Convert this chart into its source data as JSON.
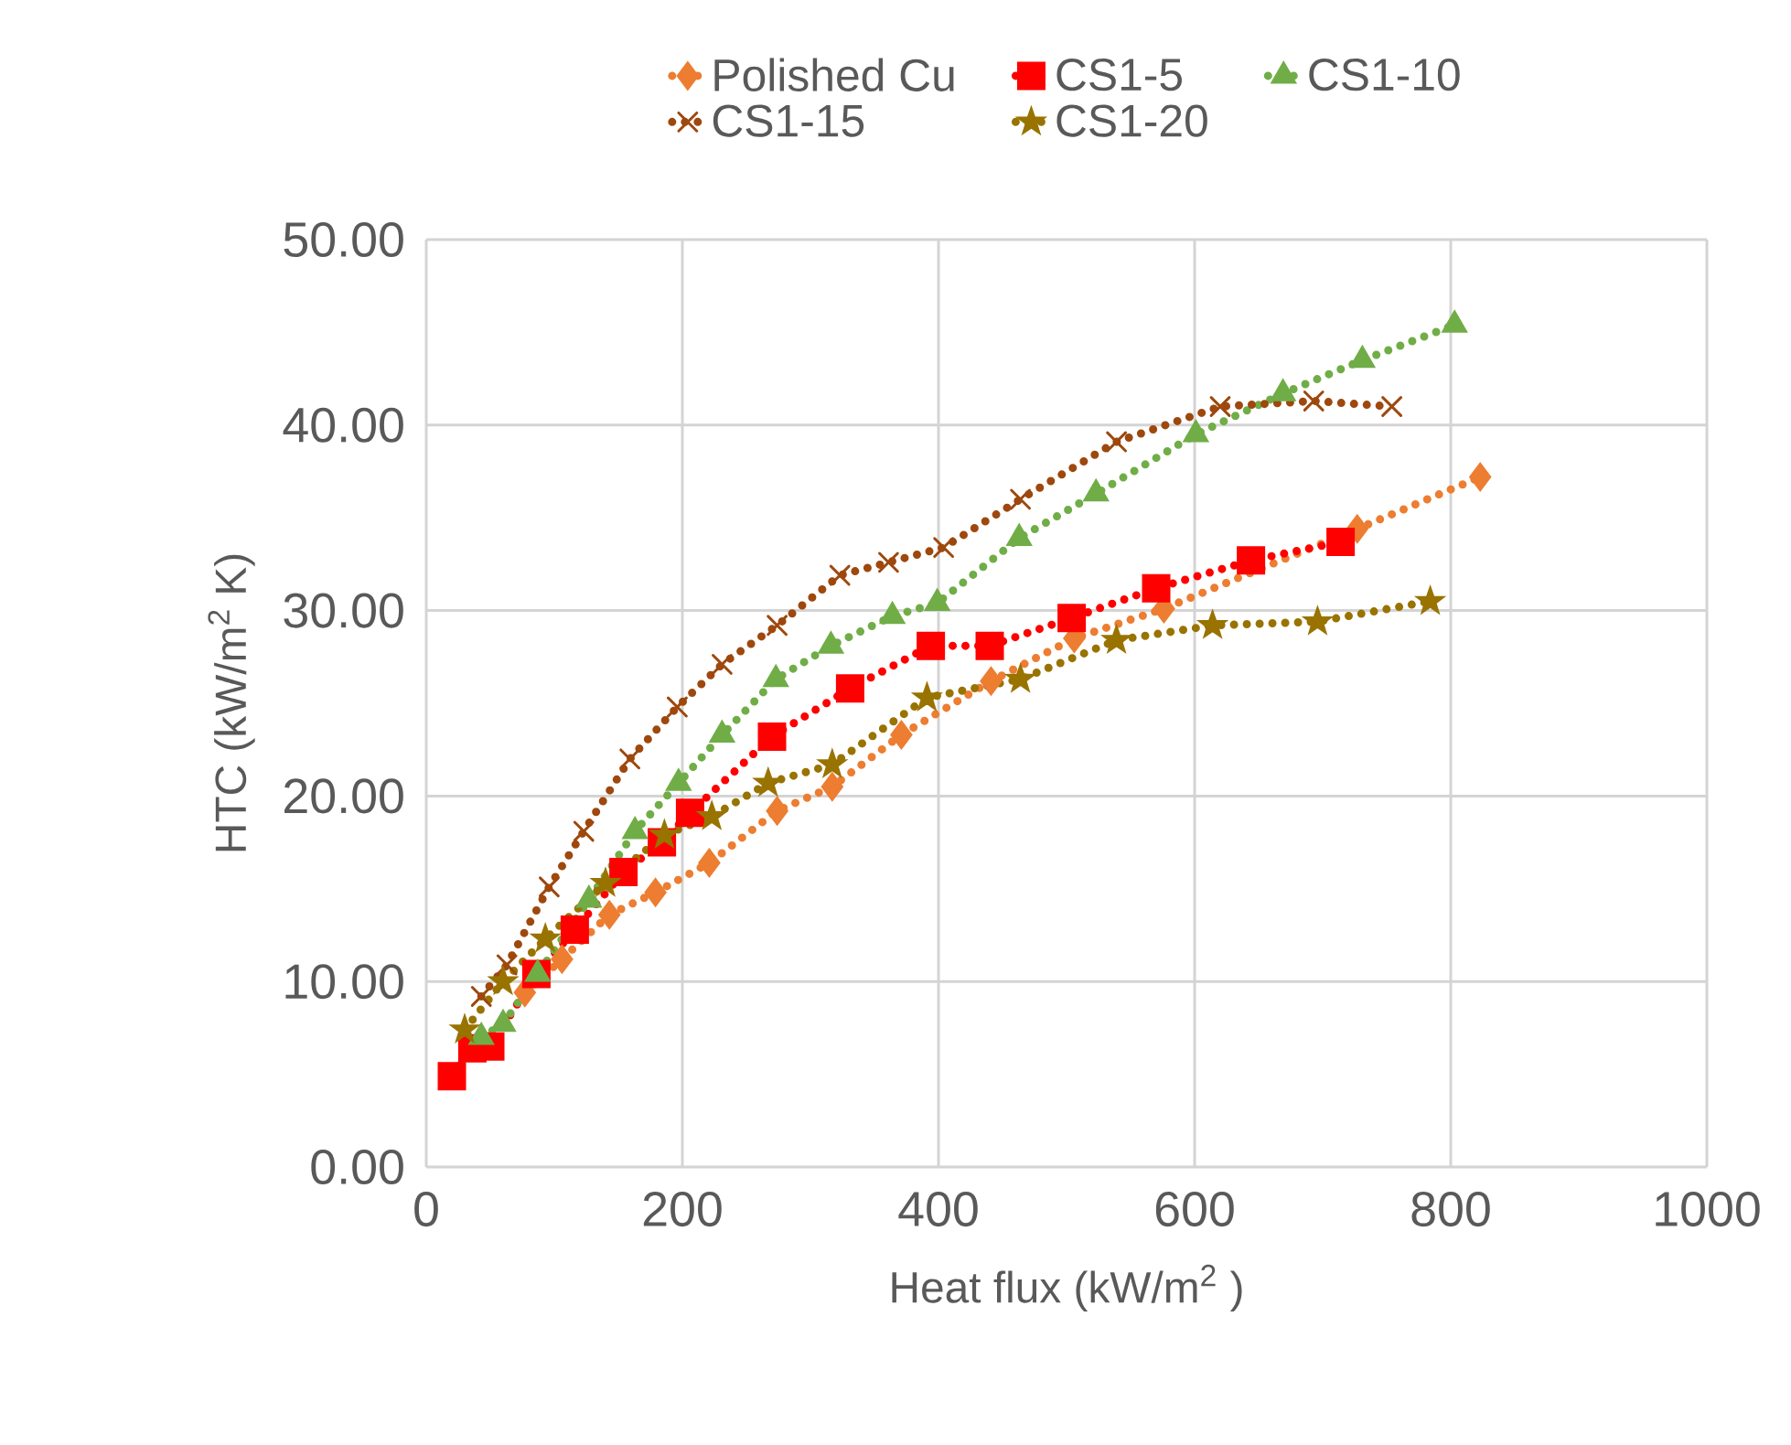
{
  "chart_data": {
    "type": "line",
    "xlabel": "Heat flux  (kW/m$^{2}$ )",
    "ylabel": "HTC (kW/m$^{2}$ K)",
    "xlim": [
      0,
      1000
    ],
    "xticks": [
      0,
      200,
      400,
      600,
      800,
      1000
    ],
    "ylim": [
      0,
      50
    ],
    "yticks": [
      {
        "value": 0,
        "label": "0.00"
      },
      {
        "value": 10,
        "label": "10.00"
      },
      {
        "value": 20,
        "label": "20.00"
      },
      {
        "value": 30,
        "label": "30.00"
      },
      {
        "value": 40,
        "label": "40.00"
      },
      {
        "value": 50,
        "label": "50.00"
      }
    ],
    "grid": true,
    "legend": "top",
    "line_style": "dotted",
    "series": [
      {
        "name": "Polished Cu",
        "color": "#ed7d31",
        "marker": "diamond",
        "x": [
          77,
          106,
          143,
          179,
          221,
          274,
          317,
          371,
          441,
          506,
          576,
          727,
          823
        ],
        "values": [
          9.4,
          11.2,
          13.6,
          14.8,
          16.4,
          19.2,
          20.5,
          23.3,
          26.2,
          28.5,
          30.1,
          34.4,
          37.2
        ]
      },
      {
        "name": "CS1-5",
        "color": "#ff0000",
        "marker": "square",
        "x": [
          20,
          36,
          50,
          86,
          116,
          154,
          184,
          206,
          270,
          331,
          394,
          440,
          504,
          570,
          644,
          714
        ],
        "values": [
          4.9,
          6.4,
          6.5,
          10.4,
          12.8,
          15.9,
          17.5,
          19.1,
          23.2,
          25.8,
          28.1,
          28.1,
          29.6,
          31.2,
          32.7,
          33.7
        ]
      },
      {
        "name": "CS1-10",
        "color": "#70ad47",
        "marker": "triangle",
        "x": [
          43,
          60,
          87,
          127,
          163,
          197,
          231,
          273,
          316,
          364,
          399,
          463,
          523,
          601,
          669,
          731,
          803
        ],
        "values": [
          7.0,
          7.7,
          10.4,
          14.4,
          18.1,
          20.7,
          23.3,
          26.3,
          28.1,
          29.7,
          30.4,
          33.9,
          36.3,
          39.5,
          41.7,
          43.5,
          45.4
        ]
      },
      {
        "name": "CS1-15",
        "color": "#9e480e",
        "marker": "cross",
        "x": [
          43,
          63,
          96,
          123,
          159,
          196,
          231,
          274,
          323,
          361,
          404,
          464,
          539,
          620,
          693,
          754
        ],
        "values": [
          9.2,
          10.9,
          15.1,
          18.1,
          22.0,
          24.8,
          27.1,
          29.2,
          31.9,
          32.6,
          33.4,
          36.0,
          39.1,
          41.0,
          41.3,
          41.0
        ]
      },
      {
        "name": "CS1-20",
        "color": "#997300",
        "marker": "star",
        "x": [
          30,
          60,
          93,
          140,
          186,
          223,
          267,
          317,
          391,
          464,
          539,
          614,
          696,
          784
        ],
        "values": [
          7.4,
          10.0,
          12.3,
          15.3,
          17.9,
          18.9,
          20.7,
          21.7,
          25.3,
          26.3,
          28.4,
          29.2,
          29.4,
          30.5
        ]
      }
    ]
  }
}
